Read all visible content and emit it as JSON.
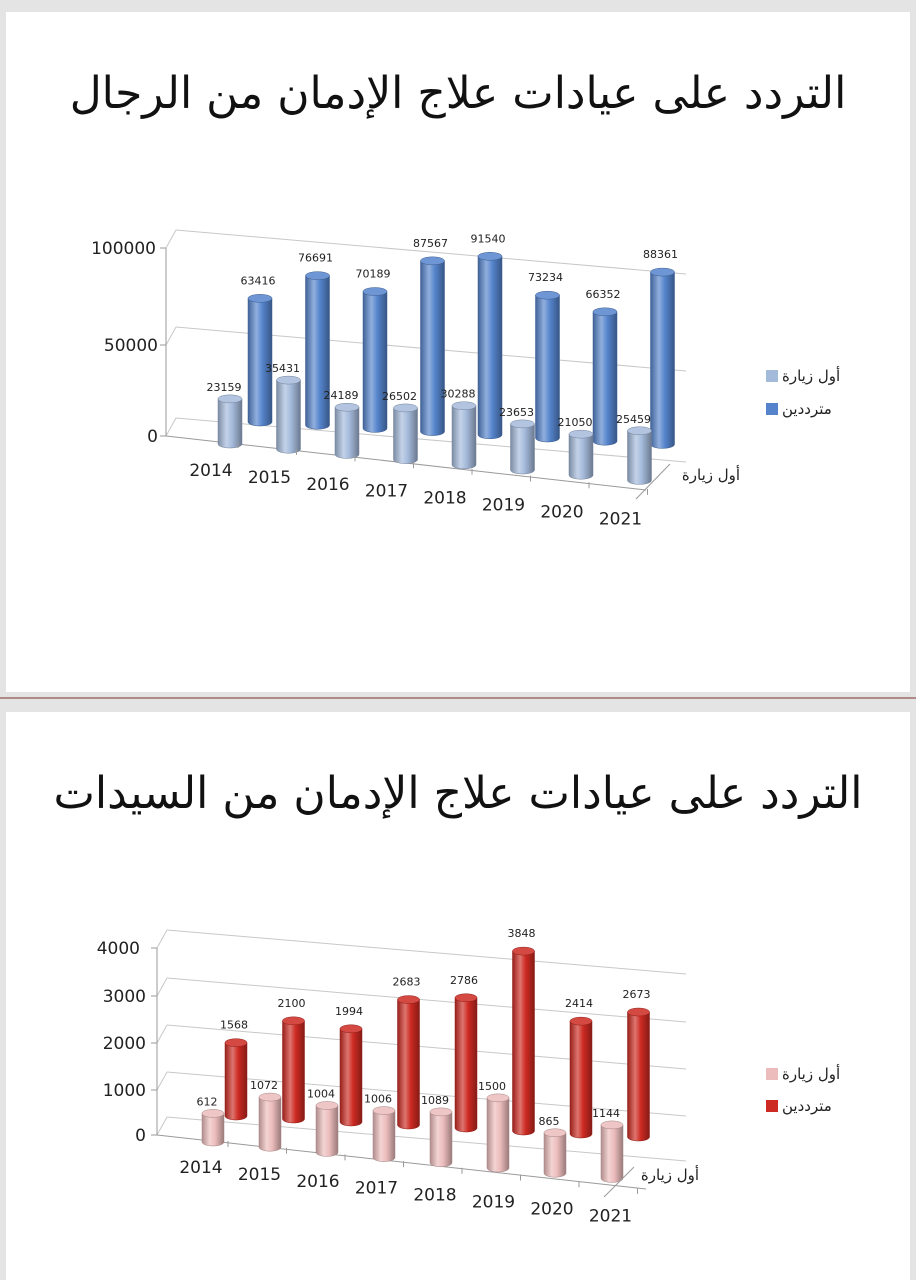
{
  "charts": [
    {
      "title": "التردد على عيادات علاج الإدمان من الرجال",
      "chart_data": {
        "type": "bar",
        "categories": [
          "2014",
          "2015",
          "2016",
          "2017",
          "2018",
          "2019",
          "2020",
          "2021"
        ],
        "series": [
          {
            "name": "أول زيارة",
            "values": [
              23159,
              35431,
              24189,
              26502,
              30288,
              23653,
              21050,
              25459
            ]
          },
          {
            "name": "مترددين",
            "values": [
              63416,
              76691,
              70189,
              87567,
              91540,
              73234,
              66352,
              88361
            ]
          }
        ],
        "yticks": [
          "0",
          "50000",
          "100000"
        ],
        "ylim": [
          0,
          100000
        ],
        "depth_axis_label": "أول زيارة",
        "legend_position": "right",
        "colors": {
          "front": "#a4badb",
          "back": "#5584cc"
        }
      }
    },
    {
      "title": "التردد على عيادات علاج الإدمان من السيدات",
      "chart_data": {
        "type": "bar",
        "categories": [
          "2014",
          "2015",
          "2016",
          "2017",
          "2018",
          "2019",
          "2020",
          "2021"
        ],
        "series": [
          {
            "name": "أول زيارة",
            "values": [
              612,
              1072,
              1004,
              1006,
              1089,
              1500,
              865,
              1144
            ]
          },
          {
            "name": "مترددين",
            "values": [
              1568,
              2100,
              1994,
              2683,
              2786,
              3848,
              2414,
              2673
            ]
          }
        ],
        "yticks": [
          "0",
          "1000",
          "2000",
          "3000",
          "4000"
        ],
        "ylim": [
          0,
          4000
        ],
        "depth_axis_label": "أول زيارة",
        "legend_position": "right",
        "colors": {
          "front": "#ecbcbc",
          "back": "#cc2a22"
        }
      }
    }
  ]
}
